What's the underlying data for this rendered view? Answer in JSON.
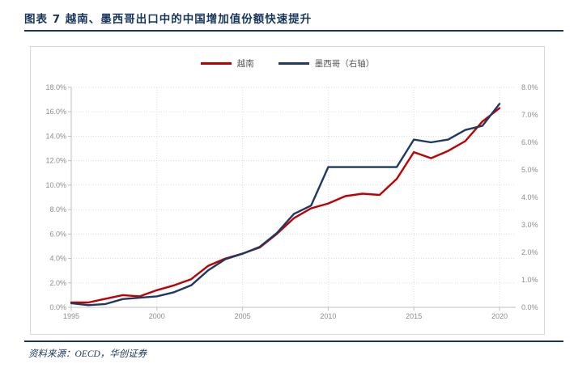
{
  "title": "图表 7  越南、墨西哥出口中的中国增加值份额快速提升",
  "source": "资料来源：OECD，华创证券",
  "colors": {
    "accent_navy": "#17365D",
    "vietnam_red": "#C00000",
    "mexico_navy": "#1F3864",
    "axis_line": "#BFBFBF",
    "gridline": "#DCDCDC",
    "tick_label": "#8C8C8C",
    "legend_text": "#595959",
    "box_border": "#D9D9D9"
  },
  "chart_data": {
    "type": "line",
    "title": "越南、墨西哥出口中的中国增加值份额快速提升",
    "x": [
      1995,
      1996,
      1997,
      1998,
      1999,
      2000,
      2001,
      2002,
      2003,
      2004,
      2005,
      2006,
      2007,
      2008,
      2009,
      2010,
      2011,
      2012,
      2013,
      2014,
      2015,
      2016,
      2017,
      2018,
      2019,
      2020
    ],
    "series": [
      {
        "name": "越南",
        "axis": "left",
        "color": "#C00000",
        "values": [
          0.4,
          0.4,
          0.7,
          1.0,
          0.9,
          1.4,
          1.8,
          2.3,
          3.4,
          4.0,
          4.4,
          4.9,
          6.0,
          7.3,
          8.1,
          8.5,
          9.1,
          9.3,
          9.2,
          10.5,
          12.7,
          12.2,
          12.8,
          13.6,
          15.2,
          16.3
        ]
      },
      {
        "name": "墨西哥（右轴）",
        "axis": "right",
        "color": "#1F3864",
        "values": [
          0.15,
          0.08,
          0.12,
          0.3,
          0.35,
          0.4,
          0.55,
          0.8,
          1.35,
          1.75,
          1.95,
          2.2,
          2.7,
          3.4,
          3.7,
          5.1,
          5.1,
          5.1,
          5.1,
          5.1,
          6.1,
          6.0,
          6.1,
          6.45,
          6.6,
          7.4
        ]
      }
    ],
    "left_axis": {
      "min": 0,
      "max": 18,
      "step": 2,
      "tick_labels": [
        "0.0%",
        "2.0%",
        "4.0%",
        "6.0%",
        "8.0%",
        "10.0%",
        "12.0%",
        "14.0%",
        "16.0%",
        "18.0%"
      ]
    },
    "right_axis": {
      "min": 0,
      "max": 8,
      "step": 1,
      "tick_labels": [
        "0.0%",
        "1.0%",
        "2.0%",
        "3.0%",
        "4.0%",
        "5.0%",
        "6.0%",
        "7.0%",
        "8.0%"
      ]
    },
    "x_tick_labels": [
      "1995",
      "2000",
      "2005",
      "2010",
      "2015",
      "2020"
    ],
    "grid": "dotted",
    "legend_position": "top-center"
  }
}
